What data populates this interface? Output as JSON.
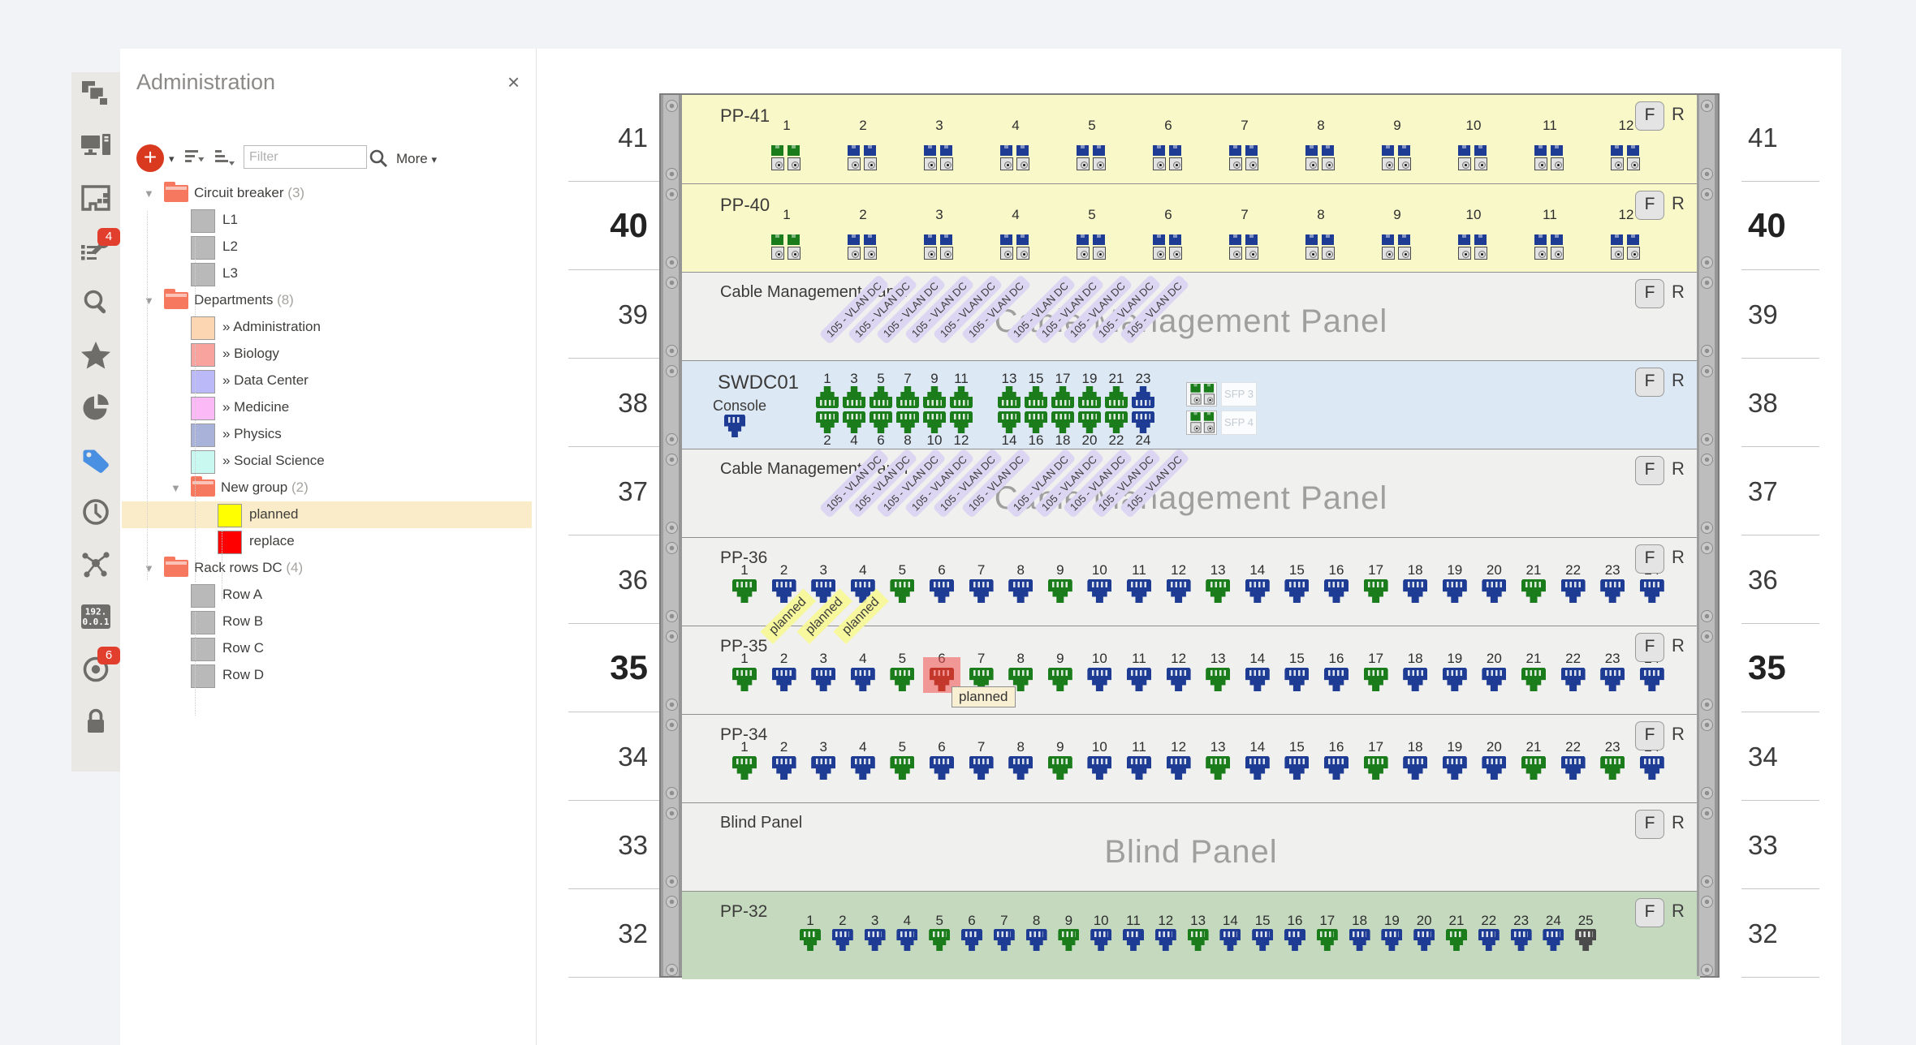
{
  "colors": {
    "port_green": "#1a7c1a",
    "port_blue": "#1e3c94",
    "port_red": "#8c1b00",
    "port_black": "#4b4b4b",
    "unit_yellow": "#f8f8c8",
    "unit_gray": "#f0f0ee",
    "unit_blue": "#dce8f4",
    "unit_green": "#c4d9be",
    "badge": "#e23e2e",
    "tag_active": "#4a90e2",
    "selection": "#faecc8",
    "folder": "#f5785f"
  },
  "icon_bar": {
    "items": [
      {
        "name": "topology-icon"
      },
      {
        "name": "workstation-icon"
      },
      {
        "name": "floorplan-icon"
      },
      {
        "name": "maintenance-icon",
        "badge": "4"
      },
      {
        "name": "search-icon"
      },
      {
        "name": "favorites-icon"
      },
      {
        "name": "pie-chart-icon"
      },
      {
        "name": "tag-icon",
        "active": true
      },
      {
        "name": "history-icon"
      },
      {
        "name": "topology-map-icon"
      },
      {
        "name": "ip-address-icon",
        "label_top": "192.",
        "label_bottom": "0.0.1"
      },
      {
        "name": "monitoring-icon",
        "badge": "6"
      },
      {
        "name": "lock-icon"
      }
    ]
  },
  "admin_panel": {
    "title": "Administration",
    "close_label": "×",
    "toolbar": {
      "add_label": "+",
      "filter_placeholder": "Filter",
      "more_label": "More"
    },
    "tree": [
      {
        "type": "folder",
        "depth": 0,
        "label": "Circuit breaker",
        "count": "(3)"
      },
      {
        "type": "item",
        "depth": 1,
        "label": "L1",
        "color": "#b9b9b9"
      },
      {
        "type": "item",
        "depth": 1,
        "label": "L2",
        "color": "#b9b9b9"
      },
      {
        "type": "item",
        "depth": 1,
        "label": "L3",
        "color": "#b9b9b9"
      },
      {
        "type": "folder",
        "depth": 0,
        "label": "Departments",
        "count": "(8)"
      },
      {
        "type": "item",
        "depth": 1,
        "label": "» Administration",
        "color": "#fcd5b2"
      },
      {
        "type": "item",
        "depth": 1,
        "label": "» Biology",
        "color": "#f8a39d"
      },
      {
        "type": "item",
        "depth": 1,
        "label": "» Data Center",
        "color": "#bcb9f8"
      },
      {
        "type": "item",
        "depth": 1,
        "label": "» Medicine",
        "color": "#fbb9f6"
      },
      {
        "type": "item",
        "depth": 1,
        "label": "» Physics",
        "color": "#a9b3d9"
      },
      {
        "type": "item",
        "depth": 1,
        "label": "» Social Science",
        "color": "#c9f8f0"
      },
      {
        "type": "folder",
        "depth": 1,
        "label": "New group",
        "count": "(2)"
      },
      {
        "type": "item",
        "depth": 2,
        "label": "planned",
        "color": "#ffff00",
        "selected": true
      },
      {
        "type": "item",
        "depth": 2,
        "label": "replace",
        "color": "#ff0000"
      },
      {
        "type": "folder",
        "depth": 0,
        "label": "Rack rows DC",
        "count": "(4)"
      },
      {
        "type": "item",
        "depth": 1,
        "label": "Row A",
        "color": "#b9b9b9"
      },
      {
        "type": "item",
        "depth": 1,
        "label": "Row B",
        "color": "#b9b9b9"
      },
      {
        "type": "item",
        "depth": 1,
        "label": "Row C",
        "color": "#b9b9b9"
      },
      {
        "type": "item",
        "depth": 1,
        "label": "Row D",
        "color": "#b9b9b9"
      }
    ]
  },
  "rack": {
    "front_label": "F",
    "rear_label": "R",
    "units": [
      {
        "u": "41",
        "bold": false,
        "kind": "fiber-panel",
        "name": "PP-41",
        "bg": "#f8f8c8",
        "ports": [
          "green",
          "blue",
          "blue",
          "blue",
          "blue",
          "blue",
          "blue",
          "blue",
          "blue",
          "blue",
          "blue",
          "blue"
        ]
      },
      {
        "u": "40",
        "bold": true,
        "kind": "fiber-panel",
        "name": "PP-40",
        "bg": "#f8f8c8",
        "ports": [
          "green",
          "blue",
          "blue",
          "blue",
          "blue",
          "blue",
          "blue",
          "blue",
          "blue",
          "blue",
          "blue",
          "blue"
        ]
      },
      {
        "u": "39",
        "bold": false,
        "kind": "cable-mgmt",
        "name": "Cable Management Panel",
        "bg": "#f0f0ee",
        "watermark": "Cable Management Panel",
        "vlan_label": "105 - VLAN DC",
        "vlan_groups": [
          6,
          5
        ]
      },
      {
        "u": "38",
        "bold": false,
        "kind": "switch",
        "name": "SWDC01",
        "bg": "#dce8f4",
        "console_label": "Console",
        "top_labels": [
          "1",
          "3",
          "5",
          "7",
          "9",
          "11",
          "13",
          "15",
          "17",
          "19",
          "21",
          "23"
        ],
        "top_ports": [
          "green",
          "green",
          "green",
          "green",
          "green",
          "green",
          "green",
          "green",
          "green",
          "green",
          "green",
          "blue"
        ],
        "bottom_labels": [
          "2",
          "4",
          "6",
          "8",
          "10",
          "12",
          "14",
          "16",
          "18",
          "20",
          "22",
          "24"
        ],
        "bottom_ports": [
          "green",
          "green",
          "green",
          "green",
          "green",
          "green",
          "green",
          "green",
          "green",
          "green",
          "green",
          "blue"
        ],
        "sfp_labels": [
          "SFP 3",
          "SFP 4"
        ]
      },
      {
        "u": "37",
        "bold": false,
        "kind": "cable-mgmt",
        "name": "Cable Management Panel",
        "bg": "#f0f0ee",
        "watermark": "Cable Management Panel",
        "vlan_label": "105 - VLAN DC",
        "vlan_groups": [
          6,
          5
        ]
      },
      {
        "u": "36",
        "bold": false,
        "kind": "patch-panel",
        "name": "PP-36",
        "bg": "#f0f0ee",
        "ports": [
          "green",
          "blue",
          "blue",
          "blue",
          "green",
          "blue",
          "blue",
          "blue",
          "green",
          "blue",
          "blue",
          "blue",
          "green",
          "blue",
          "blue",
          "blue",
          "green",
          "blue",
          "blue",
          "blue",
          "green",
          "blue",
          "blue",
          "blue"
        ]
      },
      {
        "u": "35",
        "bold": true,
        "kind": "patch-panel",
        "name": "PP-35",
        "bg": "#f0f0ee",
        "ports": [
          "green",
          "blue",
          "blue",
          "blue",
          "green",
          "red",
          "green",
          "green",
          "green",
          "blue",
          "blue",
          "blue",
          "green",
          "blue",
          "blue",
          "blue",
          "green",
          "blue",
          "blue",
          "blue",
          "green",
          "blue",
          "blue",
          "blue"
        ],
        "highlight_port": 6,
        "tooltip": "planned",
        "planned_labels": [
          "planned",
          "planned",
          "planned"
        ]
      },
      {
        "u": "34",
        "bold": false,
        "kind": "patch-panel",
        "name": "PP-34",
        "bg": "#f0f0ee",
        "ports": [
          "green",
          "blue",
          "blue",
          "blue",
          "green",
          "blue",
          "blue",
          "blue",
          "green",
          "blue",
          "blue",
          "blue",
          "green",
          "blue",
          "blue",
          "blue",
          "green",
          "blue",
          "blue",
          "blue",
          "green",
          "blue",
          "green",
          "blue"
        ]
      },
      {
        "u": "33",
        "bold": false,
        "kind": "blind",
        "name": "Blind Panel",
        "bg": "#f0f0ee",
        "watermark": "Blind Panel"
      },
      {
        "u": "32",
        "bold": false,
        "kind": "patch-panel-sm",
        "name": "PP-32",
        "bg": "#c4d9be",
        "ports": [
          "green",
          "blue",
          "blue",
          "blue",
          "green",
          "blue",
          "blue",
          "blue",
          "green",
          "blue",
          "blue",
          "blue",
          "green",
          "blue",
          "blue",
          "blue",
          "green",
          "blue",
          "blue",
          "blue",
          "green",
          "blue",
          "blue",
          "blue",
          "black"
        ]
      }
    ]
  }
}
